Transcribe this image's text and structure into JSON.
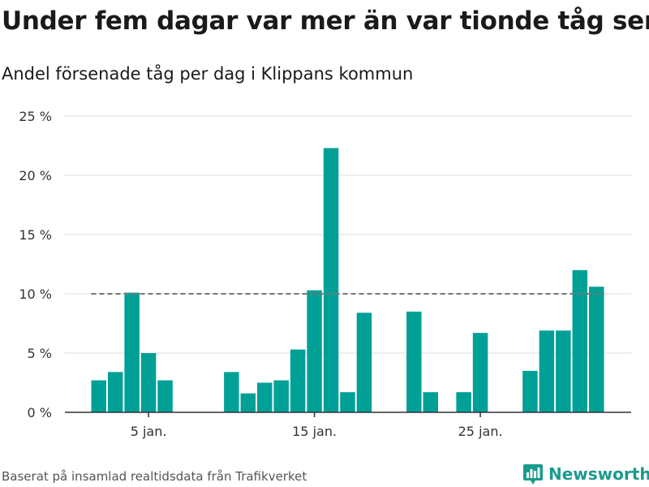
{
  "title": "Under fem dagar var mer än var tionde tåg sent",
  "subtitle": "Andel försenade tåg per dag i Klippans kommun",
  "source": "Baserat på insamlad realtidsdata från Trafikverket",
  "brand": {
    "name": "Newsworthy",
    "icon": "bar-chart-logo-icon",
    "color": "#1a9b8f"
  },
  "colors": {
    "bar": "#00a096",
    "reference_line": "#777777",
    "grid": "#dddddd"
  },
  "chart_data": {
    "type": "bar",
    "title": "Andel försenade tåg per dag i Klippans kommun",
    "xlabel": "",
    "ylabel": "",
    "x_unit": "day of January",
    "x": [
      2,
      3,
      4,
      5,
      6,
      7,
      8,
      9,
      10,
      11,
      12,
      13,
      14,
      15,
      16,
      17,
      18,
      19,
      20,
      21,
      22,
      23,
      24,
      25,
      26,
      27,
      28,
      29,
      30,
      31,
      32
    ],
    "values": [
      2.7,
      3.4,
      10.1,
      5.0,
      2.7,
      0,
      0,
      0,
      3.4,
      1.6,
      2.5,
      2.7,
      5.3,
      10.3,
      22.3,
      1.7,
      8.4,
      0,
      0,
      8.5,
      1.7,
      0,
      1.7,
      6.7,
      0,
      0,
      3.5,
      6.9,
      6.9,
      12.0,
      10.6
    ],
    "xticks": [
      5,
      15,
      25
    ],
    "xtick_labels": [
      "5 jan.",
      "15 jan.",
      "25 jan."
    ],
    "ylim": [
      0,
      25
    ],
    "yticks": [
      0,
      5,
      10,
      15,
      20,
      25
    ],
    "ytick_labels": [
      "0 %",
      "5 %",
      "10 %",
      "15 %",
      "20 %",
      "25 %"
    ],
    "reference_line": 10,
    "grid": true,
    "legend": "none"
  }
}
